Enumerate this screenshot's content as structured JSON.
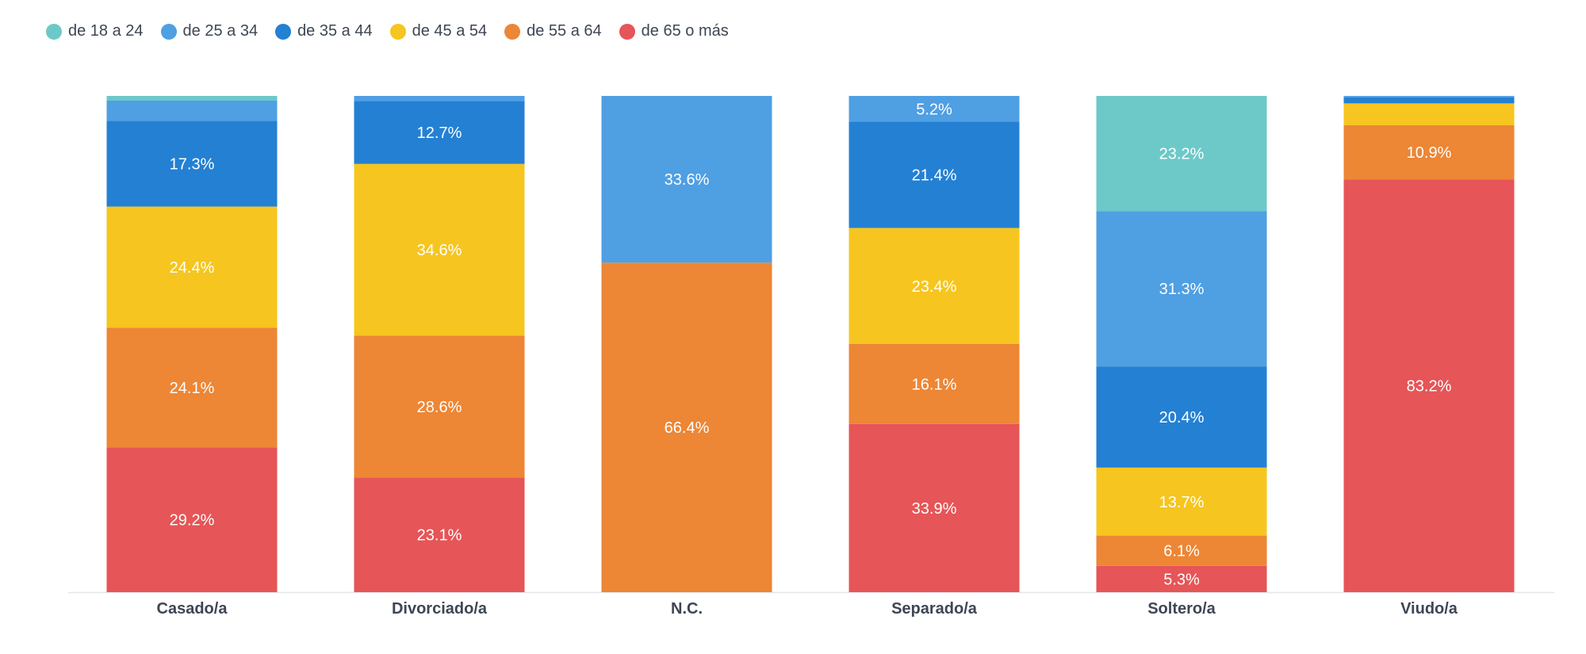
{
  "chart_data": {
    "type": "bar",
    "stacked": true,
    "normalized": true,
    "title": "",
    "xlabel": "",
    "ylabel": "",
    "ylim": [
      0,
      100
    ],
    "grid": false,
    "legend_position": "top-left",
    "categories": [
      "Casado/a",
      "Divorciado/a",
      "N.C.",
      "Separado/a",
      "Soltero/a",
      "Viudo/a"
    ],
    "series": [
      {
        "name": "de 18 a 24",
        "color": "#6cc9c8",
        "values": [
          0.9,
          0.0,
          0.0,
          0.0,
          23.2,
          0.0
        ]
      },
      {
        "name": "de 25 a 34",
        "color": "#4f9fe3",
        "values": [
          4.1,
          1.0,
          33.6,
          5.2,
          31.3,
          0.3
        ]
      },
      {
        "name": "de 35 a 44",
        "color": "#2480d3",
        "values": [
          17.3,
          12.7,
          0.0,
          21.4,
          20.4,
          1.2
        ]
      },
      {
        "name": "de 45 a 54",
        "color": "#f6c51f",
        "values": [
          24.4,
          34.6,
          0.0,
          23.4,
          13.7,
          4.4
        ]
      },
      {
        "name": "de 55 a 64",
        "color": "#ed8635",
        "values": [
          24.1,
          28.6,
          66.4,
          16.1,
          6.1,
          10.9
        ]
      },
      {
        "name": "de 65 o más",
        "color": "#e65557",
        "values": [
          29.2,
          23.1,
          0.0,
          33.9,
          5.3,
          83.2
        ]
      }
    ],
    "data_labels": [
      [
        "",
        "",
        "17.3%",
        "24.4%",
        "24.1%",
        "29.2%"
      ],
      [
        "",
        "",
        "12.7%",
        "34.6%",
        "28.6%",
        "23.1%"
      ],
      [
        "",
        "33.6%",
        "",
        "",
        "66.4%",
        ""
      ],
      [
        "",
        "5.2%",
        "21.4%",
        "23.4%",
        "16.1%",
        "33.9%"
      ],
      [
        "23.2%",
        "31.3%",
        "20.4%",
        "13.7%",
        "6.1%",
        "5.3%"
      ],
      [
        "",
        "",
        "",
        "",
        "10.9%",
        "83.2%"
      ]
    ]
  }
}
